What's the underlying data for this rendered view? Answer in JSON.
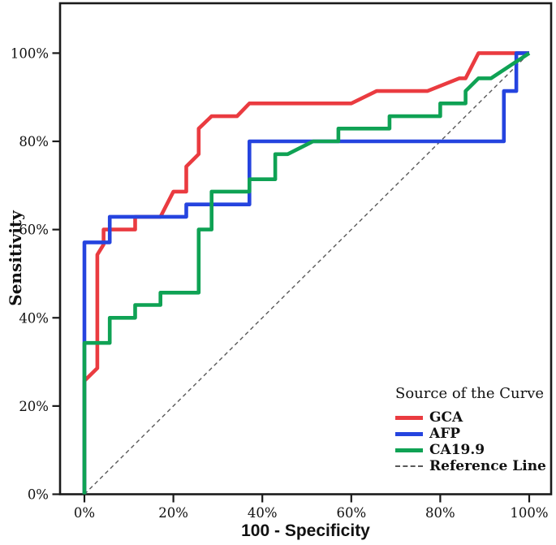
{
  "chart_data": {
    "type": "line",
    "title": "",
    "xlabel": "100 - Specificity",
    "ylabel": "Sensitivity",
    "xlim": [
      0,
      100
    ],
    "ylim": [
      0,
      100
    ],
    "grid": false,
    "units": "percent",
    "axes": {
      "x": {
        "tick_values": [
          0,
          20,
          40,
          60,
          80,
          100
        ],
        "tick_labels": [
          "0%",
          "20%",
          "40%",
          "60%",
          "80%",
          "100%"
        ]
      },
      "y": {
        "tick_values": [
          0,
          20,
          40,
          60,
          80,
          100
        ],
        "tick_labels": [
          "0%",
          "20%",
          "40%",
          "60%",
          "80%",
          "100%"
        ]
      }
    },
    "legend": {
      "title": "Source of the Curve",
      "position": "lower-right"
    },
    "series": [
      {
        "name": "GCA",
        "color": "#ea3b40",
        "style": "solid",
        "points": [
          [
            0,
            0
          ],
          [
            0,
            25.7
          ],
          [
            2.9,
            28.6
          ],
          [
            2.9,
            54.3
          ],
          [
            4.3,
            56.6
          ],
          [
            4.3,
            60
          ],
          [
            11.4,
            60
          ],
          [
            11.4,
            62.9
          ],
          [
            17.1,
            62.9
          ],
          [
            20,
            68.6
          ],
          [
            22.9,
            68.6
          ],
          [
            22.9,
            74.3
          ],
          [
            25.7,
            77.1
          ],
          [
            25.7,
            82.9
          ],
          [
            28.6,
            85.7
          ],
          [
            34.3,
            85.7
          ],
          [
            37.1,
            88.6
          ],
          [
            60,
            88.6
          ],
          [
            65.7,
            91.4
          ],
          [
            77.1,
            91.4
          ],
          [
            84.3,
            94.3
          ],
          [
            85.7,
            94.3
          ],
          [
            88.6,
            100
          ],
          [
            100,
            100
          ]
        ]
      },
      {
        "name": "AFP",
        "color": "#2544df",
        "style": "solid",
        "points": [
          [
            0,
            0
          ],
          [
            0,
            57.1
          ],
          [
            5.7,
            57.1
          ],
          [
            5.7,
            62.9
          ],
          [
            22.9,
            62.9
          ],
          [
            22.9,
            65.7
          ],
          [
            37.1,
            65.7
          ],
          [
            37.1,
            80
          ],
          [
            94.3,
            80
          ],
          [
            94.3,
            91.4
          ],
          [
            97.1,
            91.4
          ],
          [
            97.1,
            100
          ],
          [
            100,
            100
          ]
        ]
      },
      {
        "name": "CA19.9",
        "color": "#0fa254",
        "style": "solid",
        "points": [
          [
            0,
            0
          ],
          [
            0,
            34.3
          ],
          [
            5.7,
            34.3
          ],
          [
            5.7,
            40
          ],
          [
            11.4,
            40
          ],
          [
            11.4,
            42.9
          ],
          [
            17.1,
            42.9
          ],
          [
            17.1,
            45.7
          ],
          [
            25.7,
            45.7
          ],
          [
            25.7,
            60
          ],
          [
            28.6,
            60
          ],
          [
            28.6,
            68.6
          ],
          [
            37.1,
            68.6
          ],
          [
            37.1,
            71.4
          ],
          [
            42.9,
            71.4
          ],
          [
            42.9,
            77.1
          ],
          [
            45.7,
            77.1
          ],
          [
            51.4,
            80
          ],
          [
            57.1,
            80
          ],
          [
            57.1,
            82.9
          ],
          [
            68.6,
            82.9
          ],
          [
            68.6,
            85.7
          ],
          [
            80,
            85.7
          ],
          [
            80,
            88.6
          ],
          [
            85.7,
            88.6
          ],
          [
            85.7,
            91.4
          ],
          [
            88.6,
            94.3
          ],
          [
            91.4,
            94.3
          ],
          [
            100,
            100
          ]
        ]
      },
      {
        "name": "Reference Line",
        "color": "#595959",
        "style": "dashed",
        "points": [
          [
            0,
            0
          ],
          [
            100,
            100
          ]
        ]
      }
    ]
  }
}
